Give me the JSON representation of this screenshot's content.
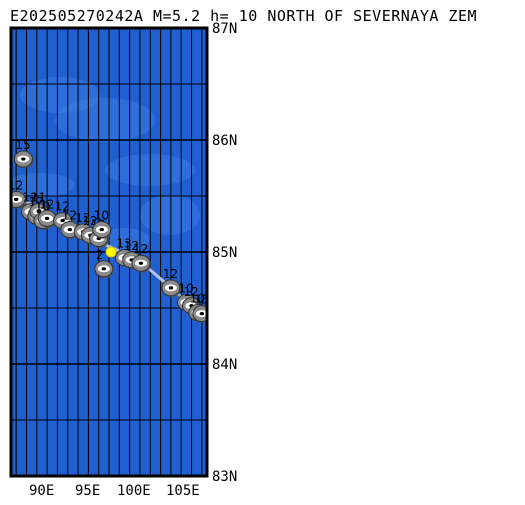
{
  "title": "E202505270242A M=5.2 h= 10 NORTH OF SEVERNAYA ZEM",
  "map": {
    "lat_labels": [
      "87N",
      "86N",
      "85N",
      "84N",
      "83N"
    ],
    "lon_labels": [
      "90E",
      "95E",
      "100E",
      "105E"
    ],
    "ocean_color": "#1f5fd0",
    "shallow_color": "#3d7de6",
    "grid_color": "#000000",
    "event_color": "#ffff00",
    "trail_color": "#cfd6e6",
    "symbol_color": "#8a8a8a"
  },
  "chart_data": {
    "type": "scatter",
    "lat_range": [
      83,
      87
    ],
    "lon_range": [
      87.5,
      106.5
    ],
    "main_event": {
      "lon": 97.2,
      "lat": 85.0
    },
    "aftershocks": [
      {
        "label": "12",
        "lon": 88.0,
        "lat": 85.47
      },
      {
        "label": "15",
        "lon": 88.7,
        "lat": 85.83
      },
      {
        "label": "12",
        "lon": 89.4,
        "lat": 85.36
      },
      {
        "label": "12",
        "lon": 90.0,
        "lat": 85.32
      },
      {
        "label": "11",
        "lon": 90.2,
        "lat": 85.36
      },
      {
        "label": "10",
        "lon": 90.6,
        "lat": 85.28
      },
      {
        "label": "12",
        "lon": 91.0,
        "lat": 85.3
      },
      {
        "label": "12",
        "lon": 92.5,
        "lat": 85.28
      },
      {
        "label": "12",
        "lon": 93.2,
        "lat": 85.2
      },
      {
        "label": "12",
        "lon": 94.5,
        "lat": 85.18
      },
      {
        "label": "12",
        "lon": 95.2,
        "lat": 85.15
      },
      {
        "label": "12",
        "lon": 96.0,
        "lat": 85.12
      },
      {
        "label": "10",
        "lon": 96.3,
        "lat": 85.2
      },
      {
        "label": "2",
        "lon": 96.5,
        "lat": 84.85
      },
      {
        "label": "13",
        "lon": 98.5,
        "lat": 84.95
      },
      {
        "label": "12",
        "lon": 99.2,
        "lat": 84.93
      },
      {
        "label": "12",
        "lon": 100.1,
        "lat": 84.9
      },
      {
        "label": "12",
        "lon": 103.0,
        "lat": 84.68
      },
      {
        "label": "10",
        "lon": 104.5,
        "lat": 84.55
      },
      {
        "label": "12",
        "lon": 105.0,
        "lat": 84.52
      },
      {
        "label": "10",
        "lon": 105.6,
        "lat": 84.46
      },
      {
        "label": "15",
        "lon": 106.0,
        "lat": 84.45
      }
    ]
  }
}
